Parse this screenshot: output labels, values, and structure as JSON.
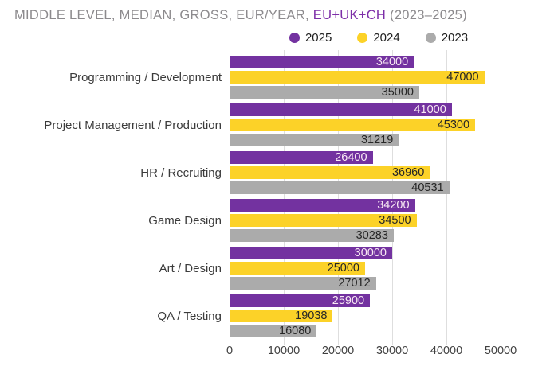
{
  "title": {
    "prefix": "MIDDLE LEVEL, MEDIAN, GROSS, EUR/YEAR, ",
    "highlight": "EU+UK+CH",
    "suffix": " (2023–2025)"
  },
  "colors": {
    "title_gray": "#8C8A8D",
    "title_purple": "#7D2EA8",
    "purple": "#7332A0",
    "yellow": "#FCD228",
    "gray": "#ABABAB",
    "gridline": "#DEDEDE",
    "value_on_purple": "#F8E9F3",
    "value_dark": "#262626"
  },
  "legend": [
    {
      "label": "2025",
      "color": "#7332A0"
    },
    {
      "label": "2024",
      "color": "#FCD228"
    },
    {
      "label": "2023",
      "color": "#ABABAB"
    }
  ],
  "chart_data": {
    "type": "bar",
    "orientation": "horizontal",
    "title": "MIDDLE LEVEL, MEDIAN, GROSS, EUR/YEAR, EU+UK+CH (2023–2025)",
    "categories": [
      "Programming / Development",
      "Project Management / Production",
      "HR / Recruiting",
      "Game Design",
      "Art / Design",
      "QA / Testing"
    ],
    "series": [
      {
        "name": "2025",
        "color": "#7332A0",
        "label_color": "#F8E9F3",
        "values": [
          34000,
          41000,
          26400,
          34200,
          30000,
          25900
        ]
      },
      {
        "name": "2024",
        "color": "#FCD228",
        "label_color": "#262626",
        "values": [
          47000,
          45300,
          36960,
          34500,
          25000,
          19038
        ]
      },
      {
        "name": "2023",
        "color": "#ABABAB",
        "label_color": "#262626",
        "values": [
          35000,
          31219,
          40531,
          30283,
          27012,
          16080
        ]
      }
    ],
    "xlabel": "",
    "ylabel": "",
    "xlim": [
      0,
      55000
    ],
    "xticks": [
      0,
      10000,
      20000,
      30000,
      40000,
      50000
    ],
    "grid": "vertical",
    "legend_position": "top-center",
    "value_labels": "inside-end"
  }
}
